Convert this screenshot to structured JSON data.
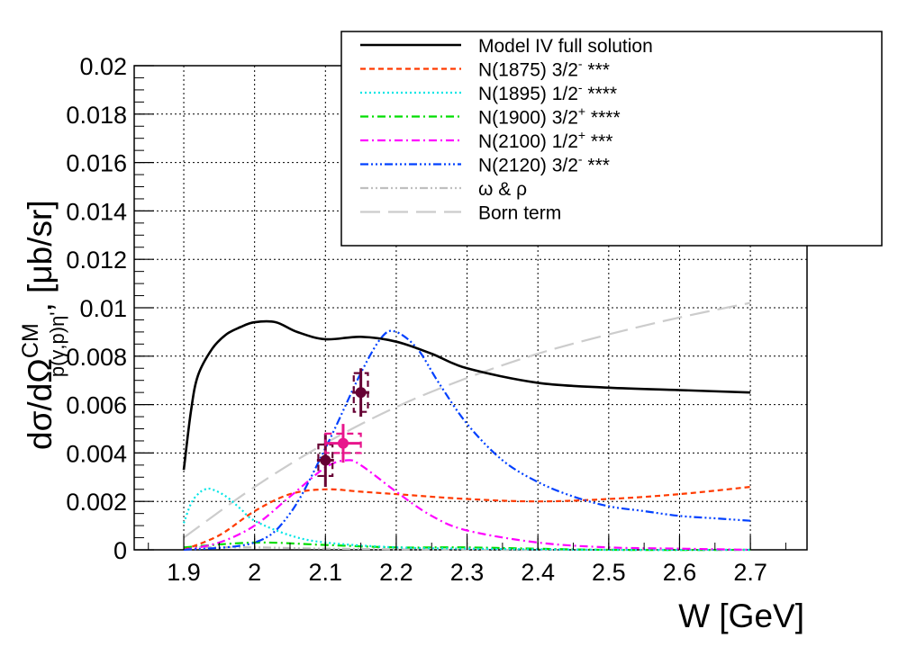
{
  "chart_data": {
    "type": "line",
    "xlabel": "W [GeV]",
    "ylabel_main": "dσ/dΩ",
    "ylabel_sup": "CM",
    "ylabel_sub": "p(γ,p)η'",
    "ylabel_unit": ", [μb/sr]",
    "xlim": [
      1.83,
      2.78
    ],
    "ylim": [
      0,
      0.02
    ],
    "x_ticks": [
      1.9,
      2.0,
      2.1,
      2.2,
      2.3,
      2.4,
      2.5,
      2.6,
      2.7
    ],
    "x_tick_labels": [
      "1.9",
      "2",
      "2.1",
      "2.2",
      "2.3",
      "2.4",
      "2.5",
      "2.6",
      "2.7"
    ],
    "y_ticks": [
      0,
      0.002,
      0.004,
      0.006,
      0.008,
      0.01,
      0.012,
      0.014,
      0.016,
      0.018,
      0.02
    ],
    "y_tick_labels": [
      "0",
      "0.002",
      "0.004",
      "0.006",
      "0.008",
      "0.01",
      "0.012",
      "0.014",
      "0.016",
      "0.018",
      "0.02"
    ],
    "grid": true,
    "legend_position": "top-right",
    "series": [
      {
        "name": "Model IV  full solution",
        "color": "#000000",
        "dash": "solid",
        "x": [
          1.9,
          1.91,
          1.92,
          1.94,
          1.96,
          1.98,
          2.0,
          2.03,
          2.06,
          2.1,
          2.15,
          2.2,
          2.25,
          2.3,
          2.4,
          2.5,
          2.6,
          2.7
        ],
        "y": [
          0.0033,
          0.0057,
          0.0072,
          0.0083,
          0.0089,
          0.0092,
          0.0094,
          0.0094,
          0.009,
          0.0087,
          0.0088,
          0.0086,
          0.0081,
          0.0075,
          0.0069,
          0.0067,
          0.0066,
          0.0065
        ]
      },
      {
        "name": "N(1875) 3/2",
        "sup": "-",
        "stars": " ***",
        "color": "#ff3a00",
        "dash": "short",
        "x": [
          1.9,
          1.95,
          2.0,
          2.05,
          2.1,
          2.15,
          2.2,
          2.3,
          2.4,
          2.5,
          2.6,
          2.7
        ],
        "y": [
          0.0,
          0.0006,
          0.0016,
          0.0023,
          0.0025,
          0.0024,
          0.0023,
          0.0021,
          0.002,
          0.0021,
          0.0023,
          0.0026
        ]
      },
      {
        "name": "N(1895) 1/2",
        "sup": "-",
        "stars": " ****",
        "color": "#00e5e5",
        "dash": "dot",
        "x": [
          1.9,
          1.91,
          1.92,
          1.93,
          1.94,
          1.96,
          1.98,
          2.0,
          2.05,
          2.1,
          2.2,
          2.3,
          2.5,
          2.7
        ],
        "y": [
          0.0011,
          0.0019,
          0.0023,
          0.0025,
          0.0025,
          0.0022,
          0.0017,
          0.0012,
          0.0006,
          0.0003,
          0.0001,
          5e-05,
          0.0,
          0.0
        ]
      },
      {
        "name": "N(1900) 3/2",
        "sup": "+",
        "stars": " ****",
        "color": "#00dd00",
        "dash": "dashdot",
        "x": [
          1.9,
          2.0,
          2.1,
          2.2,
          2.3,
          2.5,
          2.7
        ],
        "y": [
          0.0001,
          0.0003,
          0.0002,
          0.0001,
          0.0001,
          0.0,
          0.0
        ]
      },
      {
        "name": "N(2100) 1/2",
        "sup": "+",
        "stars": " ***",
        "color": "#ff00ff",
        "dash": "dashdot",
        "x": [
          1.9,
          1.95,
          2.0,
          2.05,
          2.1,
          2.13,
          2.15,
          2.2,
          2.25,
          2.3,
          2.4,
          2.5,
          2.6,
          2.7
        ],
        "y": [
          0.0,
          0.0003,
          0.001,
          0.0022,
          0.0034,
          0.0037,
          0.0035,
          0.0024,
          0.0014,
          0.0008,
          0.0003,
          0.0001,
          5e-05,
          0.0
        ]
      },
      {
        "name": "N(2120) 3/2",
        "sup": "-",
        "stars": " ***",
        "color": "#0040ff",
        "dash": "dashdotdotdot",
        "x": [
          1.9,
          2.0,
          2.05,
          2.1,
          2.15,
          2.18,
          2.2,
          2.23,
          2.26,
          2.3,
          2.35,
          2.4,
          2.45,
          2.5,
          2.55,
          2.6,
          2.65,
          2.7
        ],
        "y": [
          0.0,
          0.0003,
          0.0015,
          0.0042,
          0.0073,
          0.0088,
          0.009,
          0.0083,
          0.0069,
          0.0052,
          0.0037,
          0.0028,
          0.0022,
          0.0018,
          0.0016,
          0.0014,
          0.0013,
          0.0012
        ]
      },
      {
        "name": "ω & ρ",
        "color": "#bfbfbf",
        "dash": "dashdotdot",
        "x": [
          1.9,
          2.0,
          2.1,
          2.3,
          2.5,
          2.7
        ],
        "y": [
          0.0001,
          0.0001,
          5e-05,
          0.0,
          0.0,
          0.0
        ]
      },
      {
        "name": "Born term",
        "color": "#cccccc",
        "dash": "long",
        "x": [
          1.9,
          2.0,
          2.1,
          2.2,
          2.3,
          2.4,
          2.5,
          2.6,
          2.7
        ],
        "y": [
          0.0005,
          0.0026,
          0.0044,
          0.0059,
          0.0071,
          0.0081,
          0.0089,
          0.0096,
          0.0102
        ]
      }
    ],
    "data_points": [
      {
        "x": 2.1,
        "y": 0.0037,
        "xerr": 0.012,
        "yerr": 0.0011,
        "sys_x": 0.01,
        "sys_y": 0.00065,
        "color": "#660033"
      },
      {
        "x": 2.125,
        "y": 0.0044,
        "xerr": 0.025,
        "yerr": 0.0008,
        "sys_x": 0.025,
        "sys_y": 0.0004,
        "color": "#e8168c"
      },
      {
        "x": 2.15,
        "y": 0.0065,
        "xerr": 0.012,
        "yerr": 0.001,
        "sys_x": 0.01,
        "sys_y": 0.0008,
        "color": "#660033"
      }
    ]
  }
}
